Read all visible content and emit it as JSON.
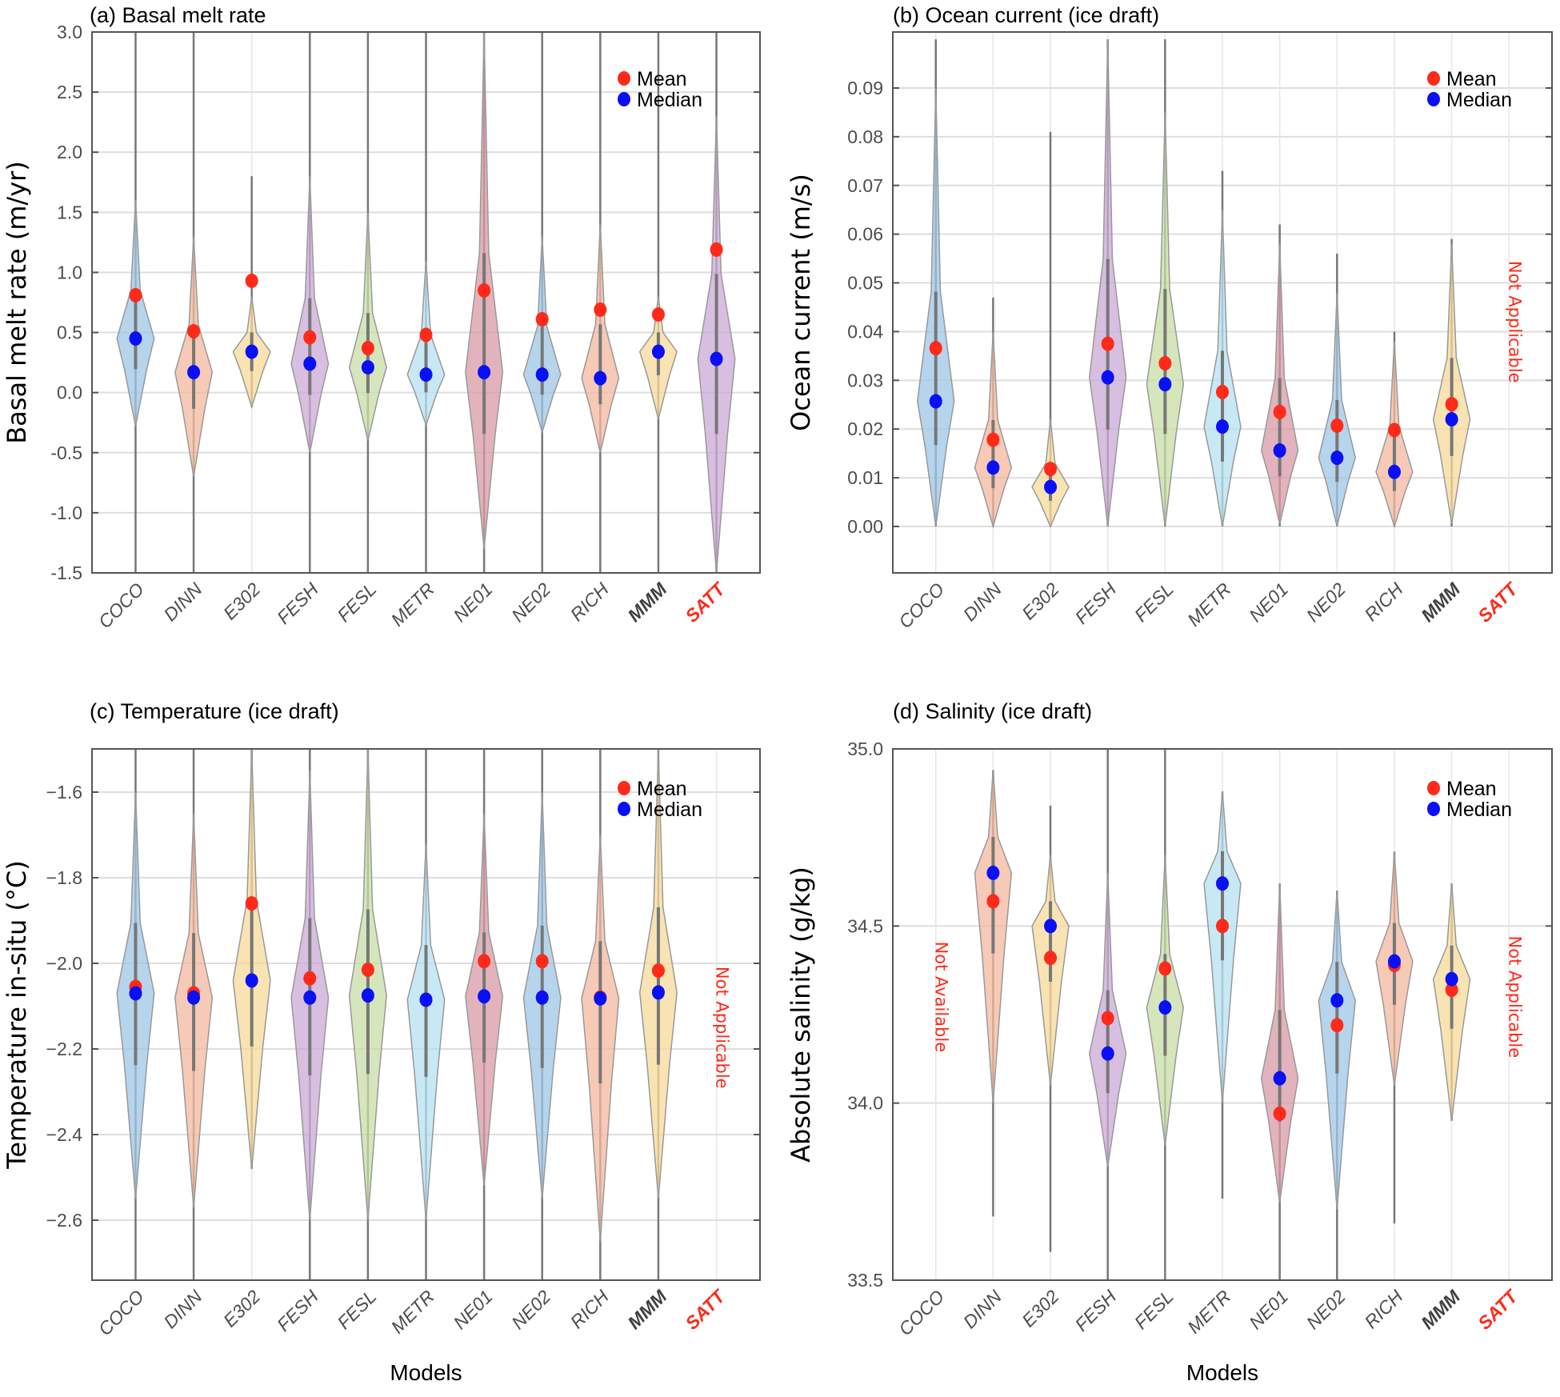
{
  "figure": {
    "categories": [
      "COCO",
      "DINN",
      "E302",
      "FESH",
      "FESL",
      "METR",
      "NE01",
      "NE02",
      "RICH",
      "MMM",
      "SATT"
    ],
    "category_styles": [
      "normal",
      "normal",
      "normal",
      "normal",
      "normal",
      "normal",
      "normal",
      "normal",
      "normal",
      "bold",
      "red"
    ],
    "violin_colors": [
      "#9ec5e6",
      "#f3b89f",
      "#f7d99a",
      "#cba8d6",
      "#c7dea6",
      "#b5e0f2",
      "#d89aa6",
      "#9ec5e6",
      "#f3b89f",
      "#f7d99a",
      "#cba8d6"
    ],
    "legend": {
      "mean_label": "Mean",
      "median_label": "Median",
      "mean_color": "#ff2a1a",
      "median_color": "#0a10f5"
    },
    "xlabel": "Models"
  },
  "chart_data": [
    {
      "type": "violin",
      "panel": "a",
      "title": "(a) Basal melt rate",
      "ylabel": "Basal melt rate (m/yr)",
      "xlabel": "",
      "ylim": [
        -1.5,
        3.0
      ],
      "yticks": [
        -1.5,
        -1.0,
        -0.5,
        0.0,
        0.5,
        1.0,
        1.5,
        2.0,
        2.5,
        3.0
      ],
      "ytick_labels": [
        "-1.5",
        "-1.0",
        "-0.5",
        "0.0",
        "0.5",
        "1.0",
        "1.5",
        "2.0",
        "2.5",
        "3.0"
      ],
      "grid": true,
      "legend_position": "top-right",
      "categories": [
        "COCO",
        "DINN",
        "E302",
        "FESH",
        "FESL",
        "METR",
        "NE01",
        "NE02",
        "RICH",
        "MMM",
        "SATT"
      ],
      "series": [
        {
          "name": "Mean",
          "values": [
            0.81,
            0.51,
            0.93,
            0.46,
            0.37,
            0.48,
            0.85,
            0.61,
            0.69,
            0.65,
            1.19
          ]
        },
        {
          "name": "Median",
          "values": [
            0.45,
            0.17,
            0.34,
            0.24,
            0.21,
            0.15,
            0.17,
            0.15,
            0.12,
            0.34,
            0.28
          ]
        }
      ],
      "violin_range": [
        [
          -1.5,
          3.0
        ],
        [
          -1.5,
          3.0
        ],
        [
          -0.12,
          1.8
        ],
        [
          -1.5,
          3.0
        ],
        [
          -1.5,
          3.0
        ],
        [
          -1.5,
          3.0
        ],
        [
          -1.5,
          3.0
        ],
        [
          -1.5,
          3.0
        ],
        [
          -1.5,
          3.0
        ],
        [
          -1.5,
          3.0
        ],
        [
          -1.5,
          3.0
        ]
      ],
      "violin_body": [
        [
          -0.28,
          1.6
        ],
        [
          -0.7,
          1.3
        ],
        [
          -0.12,
          0.8
        ],
        [
          -0.5,
          1.8
        ],
        [
          -0.4,
          1.5
        ],
        [
          -0.27,
          1.1
        ],
        [
          -1.3,
          3.0
        ],
        [
          -0.33,
          1.3
        ],
        [
          -0.5,
          1.4
        ],
        [
          -0.22,
          0.8
        ],
        [
          -1.5,
          2.3
        ]
      ],
      "annotation": ""
    },
    {
      "type": "violin",
      "panel": "b",
      "title": "(b) Ocean current (ice draft)",
      "ylabel": "Ocean current (m/s)",
      "xlabel": "",
      "ylim": [
        -0.01,
        0.1
      ],
      "yticks": [
        0.0,
        0.01,
        0.02,
        0.03,
        0.04,
        0.05,
        0.06,
        0.07,
        0.08,
        0.09
      ],
      "ytick_labels": [
        "0.00",
        "0.01",
        "0.02",
        "0.03",
        "0.04",
        "0.05",
        "0.06",
        "0.07",
        "0.08",
        "0.09"
      ],
      "grid": true,
      "legend_position": "top-right",
      "categories": [
        "COCO",
        "DINN",
        "E302",
        "FESH",
        "FESL",
        "METR",
        "NE01",
        "NE02",
        "RICH",
        "MMM",
        "SATT"
      ],
      "series": [
        {
          "name": "Mean",
          "values": [
            0.0366,
            0.0178,
            0.0118,
            0.0375,
            0.0335,
            0.0276,
            0.0235,
            0.0207,
            0.0198,
            0.0251,
            null
          ]
        },
        {
          "name": "Median",
          "values": [
            0.0257,
            0.0121,
            0.0081,
            0.0306,
            0.0292,
            0.0205,
            0.0156,
            0.0141,
            0.0112,
            0.022,
            null
          ]
        }
      ],
      "violin_range": [
        [
          0,
          0.1
        ],
        [
          0,
          0.047
        ],
        [
          0,
          0.081
        ],
        [
          0,
          0.1
        ],
        [
          0,
          0.1
        ],
        [
          0,
          0.073
        ],
        [
          0,
          0.062
        ],
        [
          0,
          0.056
        ],
        [
          0,
          0.04
        ],
        [
          0,
          0.059
        ],
        null
      ],
      "violin_body": [
        [
          0,
          0.09
        ],
        [
          0,
          0.04
        ],
        [
          0,
          0.022
        ],
        [
          0,
          0.1
        ],
        [
          0,
          0.085
        ],
        [
          0,
          0.065
        ],
        [
          0.0005,
          0.058
        ],
        [
          0,
          0.048
        ],
        [
          0,
          0.038
        ],
        [
          0.0005,
          0.058
        ],
        null
      ],
      "annotation": "Not Applicable"
    },
    {
      "type": "violin",
      "panel": "c",
      "title": "(c) Temperature (ice draft)",
      "ylabel": "Temperature in-situ (°C)",
      "xlabel": "Models",
      "ylim": [
        -2.75,
        -1.5
      ],
      "yticks": [
        -2.6,
        -2.4,
        -2.2,
        -2.0,
        -1.8,
        -1.6
      ],
      "ytick_labels": [
        "−2.6",
        "−2.4",
        "−2.2",
        "−2.0",
        "−1.8",
        "−1.6"
      ],
      "grid": true,
      "legend_position": "top-right",
      "categories": [
        "COCO",
        "DINN",
        "E302",
        "FESH",
        "FESL",
        "METR",
        "NE01",
        "NE02",
        "RICH",
        "MMM",
        "SATT"
      ],
      "series": [
        {
          "name": "Mean",
          "values": [
            -2.055,
            -2.07,
            -1.86,
            -2.035,
            -2.015,
            -2.085,
            -1.995,
            -1.995,
            -2.08,
            -2.017,
            null
          ]
        },
        {
          "name": "Median",
          "values": [
            -2.07,
            -2.08,
            -2.04,
            -2.08,
            -2.075,
            -2.085,
            -2.077,
            -2.08,
            -2.082,
            -2.068,
            null
          ]
        }
      ],
      "violin_range": [
        [
          -2.75,
          -1.5
        ],
        [
          -2.75,
          -1.5
        ],
        [
          -2.48,
          -1.5
        ],
        [
          -2.75,
          -1.5
        ],
        [
          -2.75,
          -1.5
        ],
        [
          -2.75,
          -1.5
        ],
        [
          -2.75,
          -1.5
        ],
        [
          -2.75,
          -1.5
        ],
        [
          -2.75,
          -1.5
        ],
        [
          -2.75,
          -1.5
        ],
        null
      ],
      "violin_body": [
        [
          -2.55,
          -1.6
        ],
        [
          -2.57,
          -1.65
        ],
        [
          -2.48,
          -1.5
        ],
        [
          -2.6,
          -1.55
        ],
        [
          -2.6,
          -1.5
        ],
        [
          -2.6,
          -1.72
        ],
        [
          -2.52,
          -1.65
        ],
        [
          -2.55,
          -1.6
        ],
        [
          -2.65,
          -1.7
        ],
        [
          -2.55,
          -1.5
        ],
        null
      ],
      "annotation": "Not Applicable"
    },
    {
      "type": "violin",
      "panel": "d",
      "title": "(d) Salinity (ice draft)",
      "ylabel": "Absolute salinity (g/kg)",
      "xlabel": "Models",
      "ylim": [
        33.5,
        35.0
      ],
      "yticks": [
        33.5,
        34.0,
        34.5,
        35.0
      ],
      "ytick_labels": [
        "33.5",
        "34.0",
        "34.5",
        "35.0"
      ],
      "grid": true,
      "legend_position": "top-right",
      "categories": [
        "COCO",
        "DINN",
        "E302",
        "FESH",
        "FESL",
        "METR",
        "NE01",
        "NE02",
        "RICH",
        "MMM",
        "SATT"
      ],
      "series": [
        {
          "name": "Mean",
          "values": [
            null,
            34.57,
            34.41,
            34.24,
            34.38,
            34.5,
            33.97,
            34.22,
            34.39,
            34.32,
            null
          ]
        },
        {
          "name": "Median",
          "values": [
            null,
            34.65,
            34.5,
            34.14,
            34.27,
            34.62,
            34.07,
            34.29,
            34.4,
            34.35,
            null
          ]
        }
      ],
      "violin_range": [
        null,
        [
          33.68,
          34.94
        ],
        [
          33.58,
          34.84
        ],
        [
          33.5,
          35.0
        ],
        [
          33.5,
          35.0
        ],
        [
          33.73,
          34.88
        ],
        [
          33.5,
          34.62
        ],
        [
          33.5,
          34.6
        ],
        [
          33.66,
          34.71
        ],
        [
          33.95,
          34.62
        ],
        null
      ],
      "violin_body": [
        null,
        [
          34.0,
          34.94
        ],
        [
          34.05,
          34.7
        ],
        [
          33.82,
          34.65
        ],
        [
          33.88,
          34.7
        ],
        [
          34.0,
          34.88
        ],
        [
          33.72,
          34.62
        ],
        [
          33.7,
          34.6
        ],
        [
          34.05,
          34.71
        ],
        [
          33.95,
          34.62
        ],
        null
      ],
      "annotation": "Not Applicable",
      "annotation_left": "Not Available"
    }
  ]
}
